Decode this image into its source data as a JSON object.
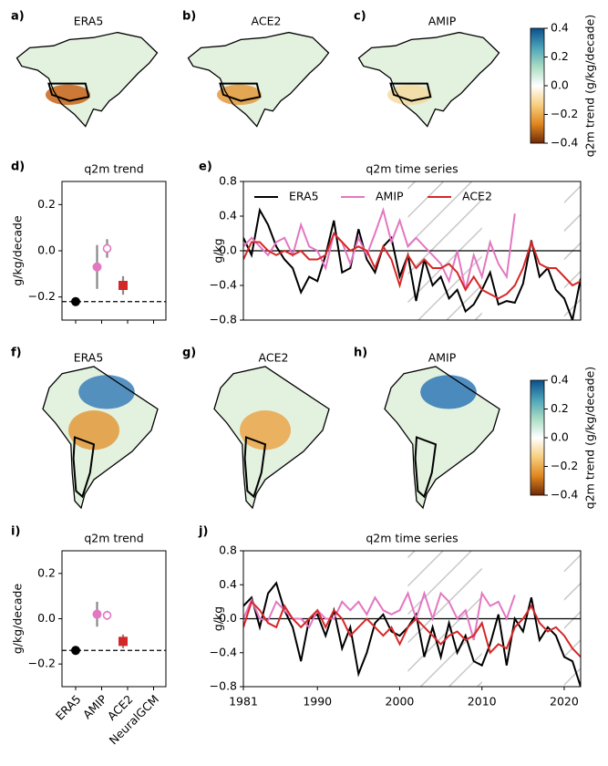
{
  "chart_data": [
    {
      "type": "map",
      "label": "a)",
      "title": "ERA5",
      "region": "north_america",
      "patches": [
        {
          "color": "#c8641a",
          "where": "southwest"
        }
      ]
    },
    {
      "type": "map",
      "label": "b)",
      "title": "ACE2",
      "region": "north_america",
      "patches": [
        {
          "color": "#e39a3c",
          "where": "southwest"
        }
      ]
    },
    {
      "type": "map",
      "label": "c)",
      "title": "AMIP",
      "region": "north_america",
      "patches": [
        {
          "color": "#f3dba0",
          "where": "southwest"
        }
      ]
    },
    {
      "type": "colorbar",
      "label": "q2m trend (g/kg/decade)",
      "colors": [
        "#0b4f8c",
        "#4aa3b8",
        "#a8dcc4",
        "#ffffff",
        "#f7cf7f",
        "#e0861f",
        "#6e2a06"
      ],
      "ylim": [
        -0.4,
        0.4
      ],
      "yticks": [
        0.4,
        0.2,
        {
          "value": 0,
          "label": "0.0"
        },
        {
          "value": -0.2,
          "label": "−0.2"
        },
        {
          "value": -0.4,
          "label": "−0.4"
        }
      ]
    },
    {
      "type": "trend",
      "label": "d)",
      "title": "q2m trend",
      "ylabel": "g/kg/decade",
      "ylim": [
        -0.3,
        0.3
      ],
      "yticks": [
        0.2,
        {
          "value": 0,
          "label": "0.0"
        },
        {
          "value": -0.2,
          "label": "−0.2"
        }
      ],
      "values": [
        -0.22,
        -0.07,
        -0.15,
        null
      ],
      "errors": [
        null,
        0.095,
        0.04,
        null
      ],
      "secondary_values": [
        null,
        0.01,
        null,
        null
      ],
      "secondary_errors": [
        null,
        0.04,
        null,
        null
      ],
      "colors": [
        "#000000",
        "#e377c2",
        "#d62728",
        "#1f77b4"
      ],
      "markers": [
        "o",
        "o",
        "s",
        "o"
      ]
    },
    {
      "type": "line",
      "label": "e)",
      "title": "q2m time series",
      "ylabel": "g/kg",
      "legend": "upper left",
      "xlim": [
        1981,
        2022
      ],
      "ylim": [
        -0.8,
        0.8
      ],
      "yticks": [
        0.8,
        0.4,
        {
          "value": 0,
          "label": "0.0"
        },
        {
          "value": -0.4,
          "label": "−0.4"
        },
        {
          "value": -0.8,
          "label": "−0.8"
        }
      ],
      "hatched_periods": [
        [
          2001,
          2010
        ],
        [
          2020,
          2022
        ]
      ],
      "x": [
        1981,
        1982,
        1983,
        1984,
        1985,
        1986,
        1987,
        1988,
        1989,
        1990,
        1991,
        1992,
        1993,
        1994,
        1995,
        1996,
        1997,
        1998,
        1999,
        2000,
        2001,
        2002,
        2003,
        2004,
        2005,
        2006,
        2007,
        2008,
        2009,
        2010,
        2011,
        2012,
        2013,
        2014,
        2015,
        2016,
        2017,
        2018,
        2019,
        2020,
        2021,
        2022
      ],
      "series": [
        {
          "name": "ERA5",
          "color": "#000000",
          "values": [
            0.15,
            -0.05,
            0.47,
            0.3,
            0.05,
            -0.1,
            -0.2,
            -0.48,
            -0.3,
            -0.35,
            -0.05,
            0.35,
            -0.25,
            -0.2,
            0.25,
            -0.1,
            -0.25,
            0.05,
            0.15,
            -0.3,
            -0.05,
            -0.58,
            -0.1,
            -0.4,
            -0.3,
            -0.55,
            -0.45,
            -0.7,
            -0.62,
            -0.45,
            -0.25,
            -0.62,
            -0.58,
            -0.6,
            -0.38,
            0.12,
            -0.3,
            -0.2,
            -0.45,
            -0.55,
            -0.8,
            -0.32
          ]
        },
        {
          "name": "AMIP",
          "color": "#e377c2",
          "values": [
            0.05,
            0.15,
            0.05,
            -0.05,
            0.1,
            0.15,
            -0.05,
            0.3,
            0.05,
            0.0,
            -0.2,
            0.2,
            0.1,
            -0.15,
            0.15,
            -0.05,
            0.2,
            0.47,
            0.1,
            0.35,
            0.05,
            0.15,
            0.05,
            -0.05,
            -0.15,
            -0.35,
            0.0,
            -0.45,
            -0.05,
            -0.3,
            0.1,
            -0.15,
            -0.3,
            0.43,
            null,
            null,
            null,
            null,
            null,
            null,
            null,
            null
          ]
        },
        {
          "name": "ACE2",
          "color": "#d62728",
          "values": [
            -0.1,
            0.1,
            0.1,
            0.0,
            -0.05,
            0.0,
            -0.05,
            0.0,
            -0.1,
            -0.1,
            -0.05,
            0.2,
            0.1,
            0.0,
            0.05,
            0.0,
            -0.2,
            0.05,
            -0.1,
            -0.4,
            -0.05,
            -0.2,
            -0.1,
            -0.2,
            -0.2,
            -0.15,
            -0.25,
            -0.45,
            -0.3,
            -0.45,
            -0.5,
            -0.55,
            -0.5,
            -0.4,
            -0.2,
            0.1,
            -0.15,
            -0.2,
            -0.2,
            -0.3,
            -0.4,
            -0.35
          ]
        }
      ]
    },
    {
      "type": "map",
      "label": "f)",
      "title": "ERA5",
      "region": "south_america",
      "patches": [
        {
          "color": "#e39a3c",
          "where": "center"
        },
        {
          "color": "#3a7fb8",
          "where": "north"
        }
      ]
    },
    {
      "type": "map",
      "label": "g)",
      "title": "ACE2",
      "region": "south_america",
      "patches": [
        {
          "color": "#eaa64a",
          "where": "center"
        }
      ]
    },
    {
      "type": "map",
      "label": "h)",
      "title": "AMIP",
      "region": "south_america",
      "patches": [
        {
          "color": "#2f78b6",
          "where": "north"
        }
      ]
    },
    {
      "type": "colorbar",
      "label": "q2m trend (g/kg/decade)",
      "colors": [
        "#0b4f8c",
        "#4aa3b8",
        "#a8dcc4",
        "#ffffff",
        "#f7cf7f",
        "#e0861f",
        "#6e2a06"
      ],
      "ylim": [
        -0.4,
        0.4
      ],
      "yticks": [
        0.4,
        0.2,
        {
          "value": 0,
          "label": "0.0"
        },
        {
          "value": -0.2,
          "label": "−0.2"
        },
        {
          "value": -0.4,
          "label": "−0.4"
        }
      ]
    },
    {
      "type": "trend",
      "label": "i)",
      "title": "q2m trend",
      "ylabel": "g/kg/decade",
      "ylim": [
        -0.3,
        0.3
      ],
      "yticks": [
        0.2,
        {
          "value": 0,
          "label": "0.0"
        },
        {
          "value": -0.2,
          "label": "−0.2"
        }
      ],
      "categories": [
        "ERA5",
        "AMIP",
        "ACE2",
        "NeuralGCM"
      ],
      "values": [
        -0.14,
        0.02,
        -0.1,
        null
      ],
      "errors": [
        null,
        0.055,
        0.03,
        null
      ],
      "secondary_values": [
        null,
        0.015,
        null,
        null
      ],
      "secondary_errors": [
        null,
        0.02,
        null,
        null
      ],
      "colors": [
        "#000000",
        "#e377c2",
        "#d62728",
        "#1f77b4"
      ],
      "markers": [
        "o",
        "o",
        "s",
        "o"
      ]
    },
    {
      "type": "line",
      "label": "j)",
      "title": "q2m time series",
      "ylabel": "g/kg",
      "xlim": [
        1981,
        2022
      ],
      "ylim": [
        -0.8,
        0.8
      ],
      "yticks": [
        0.8,
        0.4,
        {
          "value": 0,
          "label": "0.0"
        },
        {
          "value": -0.4,
          "label": "−0.4"
        },
        {
          "value": -0.8,
          "label": "−0.8"
        }
      ],
      "xticks": [
        1981,
        1990,
        2000,
        2010,
        2020
      ],
      "hatched_periods": [
        [
          2001,
          2010
        ],
        [
          2020,
          2022
        ]
      ],
      "x": [
        1981,
        1982,
        1983,
        1984,
        1985,
        1986,
        1987,
        1988,
        1989,
        1990,
        1991,
        1992,
        1993,
        1994,
        1995,
        1996,
        1997,
        1998,
        1999,
        2000,
        2001,
        2002,
        2003,
        2004,
        2005,
        2006,
        2007,
        2008,
        2009,
        2010,
        2011,
        2012,
        2013,
        2014,
        2015,
        2016,
        2017,
        2018,
        2019,
        2020,
        2021,
        2022
      ],
      "series": [
        {
          "color": "#000000",
          "values": [
            0.15,
            0.25,
            -0.1,
            0.3,
            0.42,
            0.1,
            -0.1,
            -0.5,
            0.0,
            0.05,
            -0.2,
            0.1,
            -0.35,
            -0.1,
            -0.65,
            -0.4,
            -0.05,
            0.05,
            -0.15,
            -0.2,
            -0.1,
            0.05,
            -0.45,
            -0.1,
            -0.45,
            -0.05,
            -0.4,
            -0.2,
            -0.5,
            -0.55,
            -0.3,
            0.05,
            -0.55,
            0.0,
            -0.15,
            0.25,
            -0.25,
            -0.1,
            -0.2,
            -0.45,
            -0.5,
            -0.8
          ]
        },
        {
          "color": "#e377c2",
          "values": [
            0.0,
            0.22,
            0.0,
            -0.02,
            0.2,
            0.1,
            0.0,
            0.0,
            -0.1,
            0.1,
            0.0,
            0.0,
            0.2,
            0.1,
            0.2,
            0.05,
            0.25,
            0.1,
            0.05,
            0.1,
            0.3,
            0.0,
            0.3,
            0.0,
            0.3,
            0.2,
            0.0,
            0.1,
            -0.25,
            0.3,
            0.15,
            0.2,
            0.0,
            0.28,
            null,
            null,
            null,
            null,
            null,
            null,
            null,
            null
          ]
        },
        {
          "color": "#d62728",
          "values": [
            -0.1,
            0.2,
            0.1,
            -0.05,
            -0.1,
            0.15,
            0.0,
            -0.1,
            0.0,
            0.1,
            -0.1,
            0.1,
            0.0,
            -0.2,
            -0.1,
            0.0,
            -0.1,
            -0.2,
            -0.1,
            -0.3,
            -0.1,
            0.0,
            -0.1,
            -0.2,
            -0.3,
            -0.2,
            -0.15,
            -0.25,
            -0.2,
            -0.05,
            -0.4,
            -0.3,
            -0.35,
            -0.1,
            0.0,
            0.15,
            -0.05,
            -0.15,
            -0.1,
            -0.2,
            -0.35,
            -0.45
          ]
        }
      ]
    }
  ]
}
